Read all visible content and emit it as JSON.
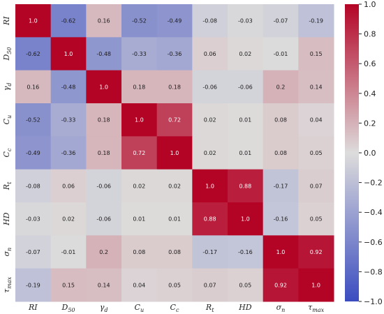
{
  "chart_data": {
    "type": "heatmap",
    "title": "",
    "xlabel": "",
    "ylabel": "",
    "variables": [
      "RI",
      "D50",
      "γd",
      "Cu",
      "Cc",
      "Rt",
      "HD",
      "σn",
      "τmax"
    ],
    "variable_labels": [
      {
        "base": "RI",
        "sub": ""
      },
      {
        "base": "D",
        "sub": "50"
      },
      {
        "base": "γ",
        "sub": "d"
      },
      {
        "base": "C",
        "sub": "u"
      },
      {
        "base": "C",
        "sub": "c"
      },
      {
        "base": "R",
        "sub": "t"
      },
      {
        "base": "HD",
        "sub": ""
      },
      {
        "base": "σ",
        "sub": "n"
      },
      {
        "base": "τ",
        "sub": "max"
      }
    ],
    "matrix": [
      [
        1.0,
        -0.62,
        0.16,
        -0.52,
        -0.49,
        -0.08,
        -0.03,
        -0.07,
        -0.19
      ],
      [
        -0.62,
        1.0,
        -0.48,
        -0.33,
        -0.36,
        0.06,
        0.02,
        -0.01,
        0.15
      ],
      [
        0.16,
        -0.48,
        1.0,
        0.18,
        0.18,
        -0.06,
        -0.06,
        0.2,
        0.14
      ],
      [
        -0.52,
        -0.33,
        0.18,
        1.0,
        0.72,
        0.02,
        0.01,
        0.08,
        0.04
      ],
      [
        -0.49,
        -0.36,
        0.18,
        0.72,
        1.0,
        0.02,
        0.01,
        0.08,
        0.05
      ],
      [
        -0.08,
        0.06,
        -0.06,
        0.02,
        0.02,
        1.0,
        0.88,
        -0.17,
        0.07
      ],
      [
        -0.03,
        0.02,
        -0.06,
        0.01,
        0.01,
        0.88,
        1.0,
        -0.16,
        0.05
      ],
      [
        -0.07,
        -0.01,
        0.2,
        0.08,
        0.08,
        -0.17,
        -0.16,
        1.0,
        0.92
      ],
      [
        -0.19,
        0.15,
        0.14,
        0.04,
        0.05,
        0.07,
        0.05,
        0.92,
        1.0
      ]
    ],
    "value_labels": [
      [
        "1.0",
        "-0.62",
        "0.16",
        "-0.52",
        "-0.49",
        "-0.08",
        "-0.03",
        "-0.07",
        "-0.19"
      ],
      [
        "-0.62",
        "1.0",
        "-0.48",
        "-0.33",
        "-0.36",
        "0.06",
        "0.02",
        "-0.01",
        "0.15"
      ],
      [
        "0.16",
        "-0.48",
        "1.0",
        "0.18",
        "0.18",
        "-0.06",
        "-0.06",
        "0.2",
        "0.14"
      ],
      [
        "-0.52",
        "-0.33",
        "0.18",
        "1.0",
        "0.72",
        "0.02",
        "0.01",
        "0.08",
        "0.04"
      ],
      [
        "-0.49",
        "-0.36",
        "0.18",
        "0.72",
        "1.0",
        "0.02",
        "0.01",
        "0.08",
        "0.05"
      ],
      [
        "-0.08",
        "0.06",
        "-0.06",
        "0.02",
        "0.02",
        "1.0",
        "0.88",
        "-0.17",
        "0.07"
      ],
      [
        "-0.03",
        "0.02",
        "-0.06",
        "0.01",
        "0.01",
        "0.88",
        "1.0",
        "-0.16",
        "0.05"
      ],
      [
        "-0.07",
        "-0.01",
        "0.2",
        "0.08",
        "0.08",
        "-0.17",
        "-0.16",
        "1.0",
        "0.92"
      ],
      [
        "-0.19",
        "0.15",
        "0.14",
        "0.04",
        "0.05",
        "0.07",
        "0.05",
        "0.92",
        "1.0"
      ]
    ],
    "vmin": -1.0,
    "vmax": 1.0,
    "colormap": "coolwarm",
    "colormap_stops": [
      "#3b4cc0",
      "#dddcdc",
      "#b40426"
    ],
    "colorbar": {
      "placement": "right",
      "ticks": [
        1.0,
        0.8,
        0.6,
        0.4,
        0.2,
        0.0,
        -0.2,
        -0.4,
        -0.6,
        -0.8,
        -1.0
      ],
      "tick_labels": [
        "1.0",
        "0.8",
        "0.6",
        "0.4",
        "0.2",
        "0.0",
        "−0.2",
        "−0.4",
        "−0.6",
        "−0.8",
        "−1.0"
      ]
    },
    "grid": false
  }
}
